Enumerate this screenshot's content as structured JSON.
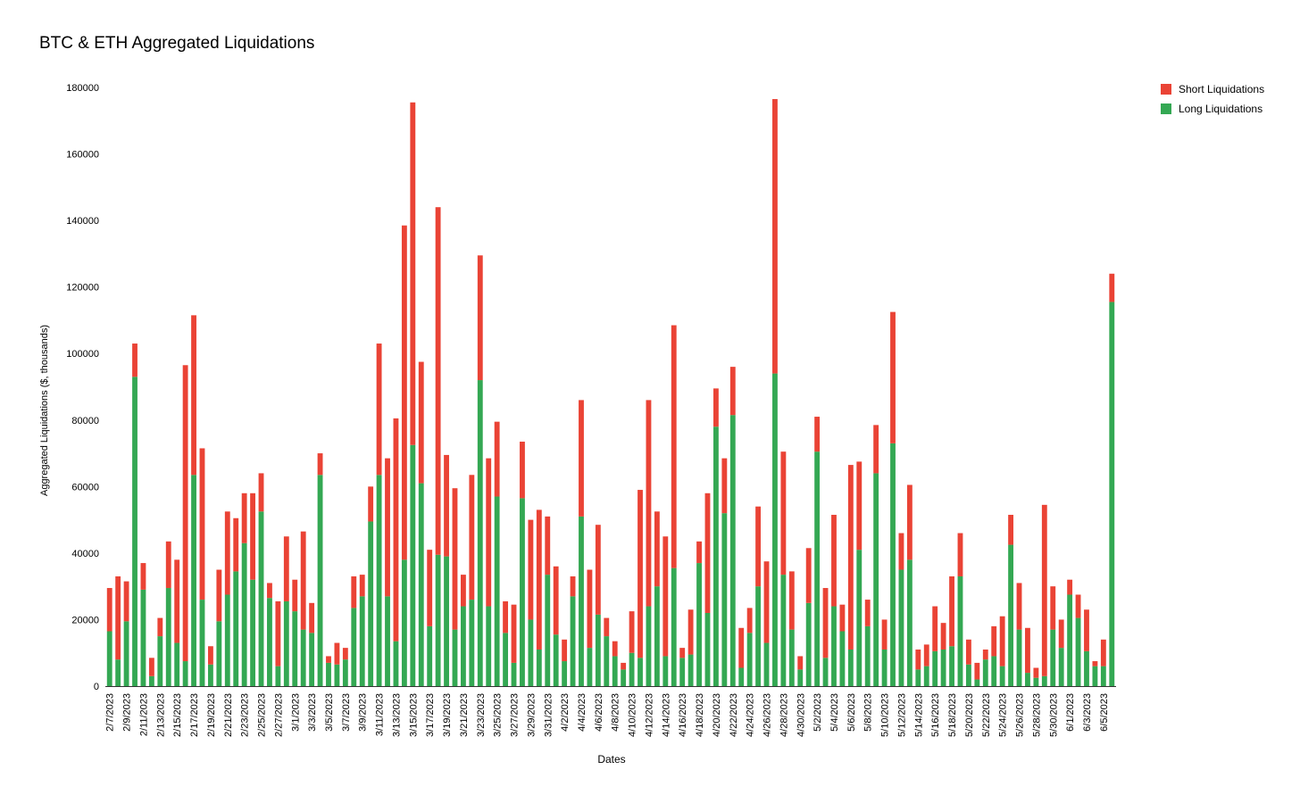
{
  "chart_data": {
    "type": "bar",
    "stacked": true,
    "title": "BTC & ETH Aggregated Liquidations",
    "xlabel": "Dates",
    "ylabel": "Aggregated Liquidations ($, thousands)",
    "ylim": [
      0,
      180000
    ],
    "yticks": [
      "0",
      "20000",
      "40000",
      "60000",
      "80000",
      "100000",
      "120000",
      "140000",
      "160000",
      "180000"
    ],
    "grid": false,
    "legend_position": "top-right",
    "categories": [
      "2/7/2023",
      "2/8/2023",
      "2/9/2023",
      "2/10/2023",
      "2/11/2023",
      "2/12/2023",
      "2/13/2023",
      "2/14/2023",
      "2/15/2023",
      "2/16/2023",
      "2/17/2023",
      "2/18/2023",
      "2/19/2023",
      "2/20/2023",
      "2/21/2023",
      "2/22/2023",
      "2/23/2023",
      "2/24/2023",
      "2/25/2023",
      "2/26/2023",
      "2/27/2023",
      "2/28/2023",
      "3/1/2023",
      "3/2/2023",
      "3/3/2023",
      "3/4/2023",
      "3/5/2023",
      "3/6/2023",
      "3/7/2023",
      "3/8/2023",
      "3/9/2023",
      "3/10/2023",
      "3/11/2023",
      "3/12/2023",
      "3/13/2023",
      "3/14/2023",
      "3/15/2023",
      "3/16/2023",
      "3/17/2023",
      "3/18/2023",
      "3/19/2023",
      "3/20/2023",
      "3/21/2023",
      "3/22/2023",
      "3/23/2023",
      "3/24/2023",
      "3/25/2023",
      "3/26/2023",
      "3/27/2023",
      "3/28/2023",
      "3/29/2023",
      "3/30/2023",
      "3/31/2023",
      "4/1/2023",
      "4/2/2023",
      "4/3/2023",
      "4/4/2023",
      "4/5/2023",
      "4/6/2023",
      "4/7/2023",
      "4/8/2023",
      "4/9/2023",
      "4/10/2023",
      "4/11/2023",
      "4/12/2023",
      "4/13/2023",
      "4/14/2023",
      "4/15/2023",
      "4/16/2023",
      "4/17/2023",
      "4/18/2023",
      "4/19/2023",
      "4/20/2023",
      "4/21/2023",
      "4/22/2023",
      "4/23/2023",
      "4/24/2023",
      "4/25/2023",
      "4/26/2023",
      "4/27/2023",
      "4/28/2023",
      "4/29/2023",
      "4/30/2023",
      "5/1/2023",
      "5/2/2023",
      "5/3/2023",
      "5/4/2023",
      "5/5/2023",
      "5/6/2023",
      "5/7/2023",
      "5/8/2023",
      "5/9/2023",
      "5/10/2023",
      "5/11/2023",
      "5/12/2023",
      "5/13/2023",
      "5/14/2023",
      "5/15/2023",
      "5/16/2023",
      "5/17/2023",
      "5/18/2023",
      "5/19/2023",
      "5/20/2023",
      "5/21/2023",
      "5/22/2023",
      "5/23/2023",
      "5/24/2023",
      "5/25/2023",
      "5/26/2023",
      "5/27/2023",
      "5/28/2023",
      "5/29/2023",
      "5/30/2023",
      "5/31/2023",
      "6/1/2023",
      "6/2/2023",
      "6/3/2023",
      "6/4/2023",
      "6/5/2023",
      "6/6/2023"
    ],
    "visible_tick_labels": [
      "2/7/2023",
      "2/9/2023",
      "2/11/2023",
      "2/13/2023",
      "2/15/2023",
      "2/17/2023",
      "2/19/2023",
      "2/21/2023",
      "2/23/2023",
      "2/25/2023",
      "2/27/2023",
      "3/1/2023",
      "3/3/2023",
      "3/5/2023",
      "3/7/2023",
      "3/9/2023",
      "3/11/2023",
      "3/13/2023",
      "3/15/2023",
      "3/17/2023",
      "3/19/2023",
      "3/21/2023",
      "3/23/2023",
      "3/25/2023",
      "3/27/2023",
      "3/29/2023",
      "3/31/2023",
      "4/2/2023",
      "4/4/2023",
      "4/6/2023",
      "4/8/2023",
      "4/10/2023",
      "4/12/2023",
      "4/14/2023",
      "4/16/2023",
      "4/18/2023",
      "4/20/2023",
      "4/22/2023",
      "4/24/2023",
      "4/26/2023",
      "4/28/2023",
      "4/30/2023",
      "5/2/2023",
      "5/4/2023",
      "5/6/2023",
      "5/8/2023",
      "5/10/2023",
      "5/12/2023",
      "5/14/2023",
      "5/16/2023",
      "5/18/2023",
      "5/20/2023",
      "5/22/2023",
      "5/24/2023",
      "5/26/2023",
      "5/28/2023",
      "5/30/2023",
      "6/1/2023",
      "6/3/2023",
      "6/5/2023"
    ],
    "series": [
      {
        "name": "Long Liquidations",
        "color": "#34a853",
        "values": [
          16500,
          8000,
          19500,
          93000,
          29000,
          3000,
          15000,
          29500,
          13000,
          7500,
          63500,
          26000,
          6500,
          19500,
          27500,
          34500,
          43000,
          32000,
          52500,
          26500,
          6000,
          25500,
          22500,
          17000,
          16000,
          63500,
          7000,
          6500,
          8000,
          23500,
          27000,
          49500,
          63500,
          27000,
          13500,
          38000,
          72500,
          61000,
          18000,
          39500,
          39000,
          17000,
          24000,
          26000,
          92000,
          24000,
          57000,
          16000,
          7000,
          56500,
          20000,
          11000,
          33500,
          15500,
          7500,
          27000,
          51000,
          11500,
          21500,
          15000,
          9000,
          5000,
          10000,
          8500,
          24000,
          30000,
          9000,
          35500,
          8500,
          9500,
          37000,
          22000,
          78000,
          52000,
          81500,
          5500,
          16000,
          30000,
          13000,
          94000,
          33500,
          17000,
          5000,
          25000,
          70500,
          8500,
          24000,
          16500,
          11000,
          41000,
          18000,
          64000,
          11000,
          73000,
          35000,
          38000,
          5000,
          6000,
          10500,
          11000,
          12000,
          33000,
          6500,
          2000,
          8000,
          9000,
          6000,
          42500,
          17000,
          4000,
          2500,
          3000,
          17000,
          11500,
          27500,
          20500,
          10500,
          6000,
          6000,
          115500
        ]
      },
      {
        "name": "Short Liquidations",
        "color": "#ea4335",
        "values": [
          13000,
          25000,
          12000,
          10000,
          8000,
          5500,
          5500,
          14000,
          25000,
          89000,
          48000,
          45500,
          5500,
          15500,
          25000,
          16000,
          15000,
          26000,
          11500,
          4500,
          19500,
          19500,
          9500,
          29500,
          9000,
          6500,
          2000,
          6500,
          3500,
          9500,
          6500,
          10500,
          39500,
          41500,
          67000,
          100500,
          103000,
          36500,
          23000,
          104500,
          30500,
          42500,
          9500,
          37500,
          37500,
          44500,
          22500,
          9500,
          17500,
          17000,
          30000,
          42000,
          17500,
          20500,
          6500,
          6000,
          35000,
          23500,
          27000,
          5500,
          4500,
          2000,
          12500,
          50500,
          62000,
          22500,
          36000,
          73000,
          3000,
          13500,
          6500,
          36000,
          11500,
          16500,
          14500,
          12000,
          7500,
          24000,
          24500,
          82500,
          37000,
          17500,
          4000,
          16500,
          10500,
          21000,
          27500,
          8000,
          55500,
          26500,
          8000,
          14500,
          9000,
          39500,
          11000,
          22500,
          6000,
          6500,
          13500,
          8000,
          21000,
          13000,
          7500,
          5000,
          3000,
          9000,
          15000,
          9000,
          14000,
          13500,
          3000,
          51500,
          13000,
          8500,
          4500,
          7000,
          12500,
          1500,
          8000,
          8500
        ]
      }
    ]
  }
}
